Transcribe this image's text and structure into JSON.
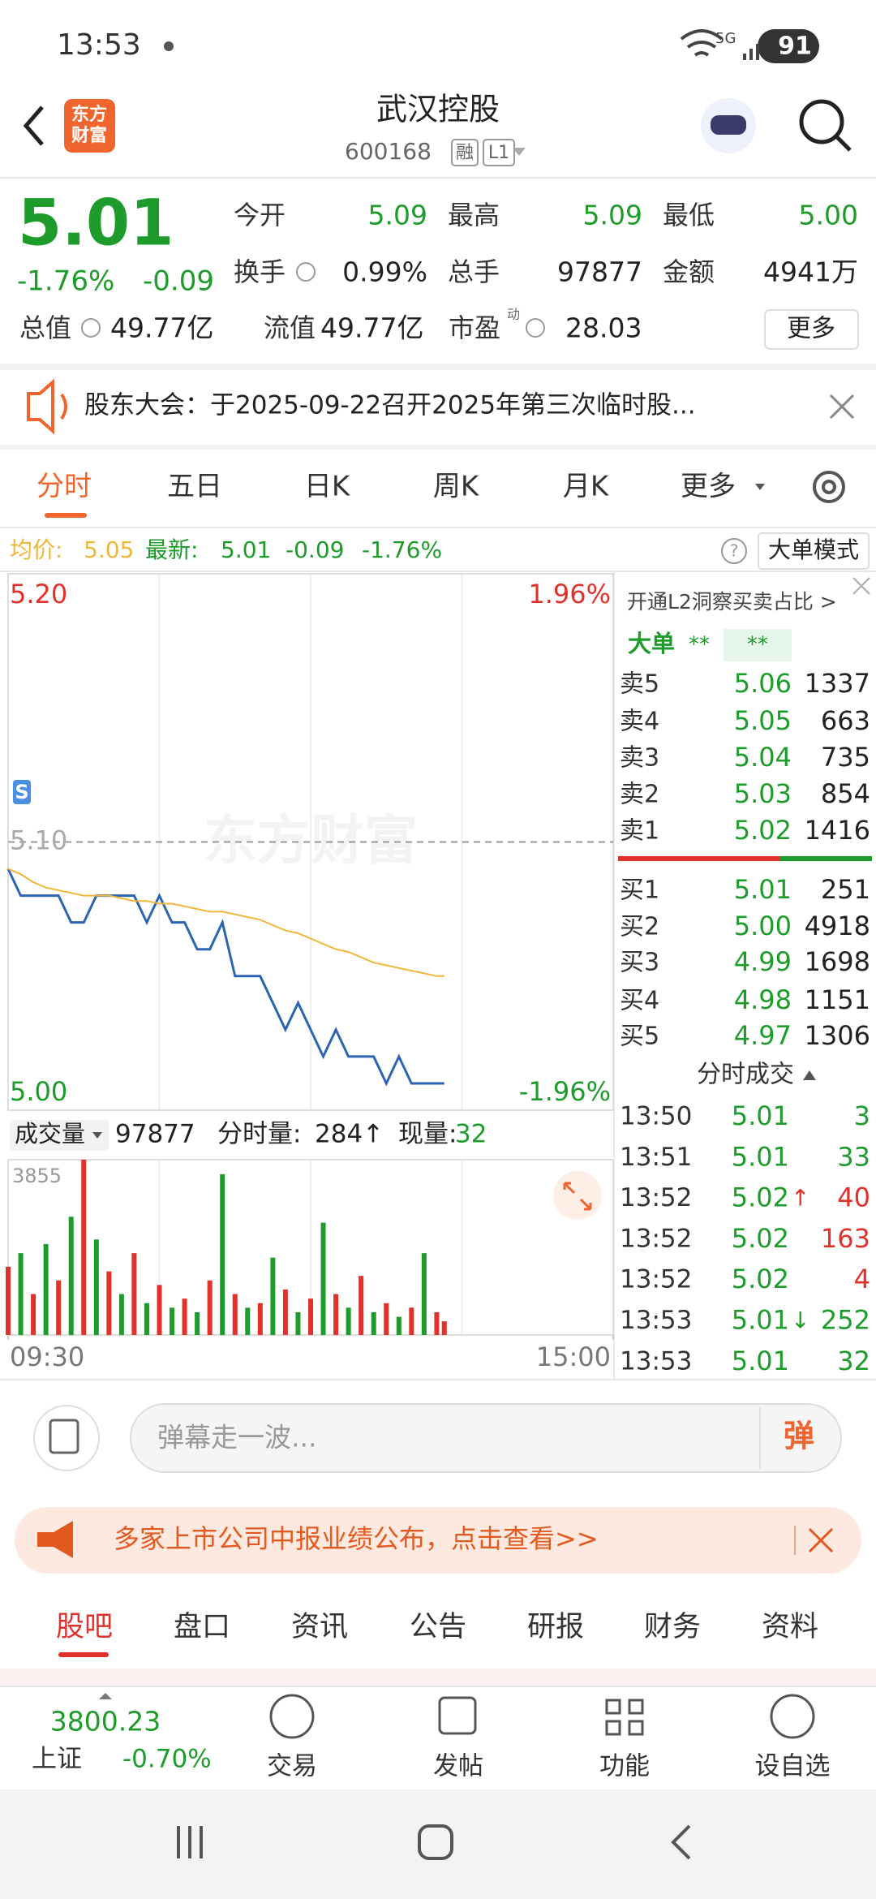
{
  "status_bar": {
    "time": "13:53",
    "network": "5G",
    "battery": "91"
  },
  "header": {
    "logo": [
      "东方",
      "财富"
    ],
    "title": "武汉控股",
    "code": "600168",
    "tags": [
      "融",
      "L1"
    ]
  },
  "quote": {
    "price": "5.01",
    "change_pct": "-1.76%",
    "change": "-0.09",
    "fields": [
      [
        "今开",
        "5.09"
      ],
      [
        "最高",
        "5.09"
      ],
      [
        "最低",
        "5.00"
      ],
      [
        "换手",
        "0.99%"
      ],
      [
        "总手",
        "97877"
      ],
      [
        "金额",
        "4941万"
      ],
      [
        "总值",
        "49.77亿"
      ],
      [
        "流值",
        "49.77亿"
      ],
      [
        "市盈",
        "28.03"
      ]
    ],
    "pe_tag": "动",
    "more": "更多"
  },
  "notice": "股东大会：于2025-09-22召开2025年第三次临时股...",
  "chart_tabs": [
    "分时",
    "五日",
    "日K",
    "周K",
    "月K",
    "更多"
  ],
  "info_bar": {
    "avg_label": "均价:",
    "avg": "5.05",
    "last_label": "最新:",
    "last": "5.01",
    "change": "-0.09",
    "change_pct": "-1.76%",
    "mode": "大单模式"
  },
  "watermark": "东方财富",
  "chart_data": [
    {
      "type": "line",
      "xlim": [
        0,
        240
      ],
      "ylim": [
        5.0,
        5.2
      ],
      "yticks": [
        {
          "value": 5.2,
          "label": "5.20"
        },
        {
          "value": 5.1,
          "label": "5.10"
        },
        {
          "value": 5.0,
          "label": "5.00"
        }
      ],
      "y2lim": [
        -1.96,
        1.96
      ],
      "y2ticks": [
        {
          "value": 1.96,
          "label": "1.96%"
        },
        {
          "value": -1.96,
          "label": "-1.96%"
        }
      ],
      "marker": "S",
      "x": [
        0,
        5,
        10,
        15,
        20,
        25,
        30,
        35,
        40,
        45,
        50,
        55,
        60,
        65,
        70,
        75,
        80,
        85,
        90,
        95,
        100,
        105,
        110,
        115,
        120,
        125,
        130,
        135,
        140,
        145,
        150,
        155,
        160,
        165,
        170,
        173
      ],
      "series": [
        {
          "color": "#2c64b3",
          "values": [
            5.09,
            5.08,
            5.08,
            5.08,
            5.08,
            5.07,
            5.07,
            5.08,
            5.08,
            5.08,
            5.08,
            5.07,
            5.08,
            5.07,
            5.07,
            5.06,
            5.06,
            5.07,
            5.05,
            5.05,
            5.05,
            5.04,
            5.03,
            5.04,
            5.03,
            5.02,
            5.03,
            5.02,
            5.02,
            5.02,
            5.01,
            5.02,
            5.01,
            5.01,
            5.01,
            5.01
          ]
        },
        {
          "color": "#f0b73a",
          "values": [
            5.09,
            5.088,
            5.085,
            5.083,
            5.082,
            5.081,
            5.08,
            5.08,
            5.08,
            5.079,
            5.078,
            5.078,
            5.077,
            5.077,
            5.076,
            5.075,
            5.074,
            5.074,
            5.073,
            5.072,
            5.071,
            5.069,
            5.067,
            5.066,
            5.064,
            5.062,
            5.06,
            5.059,
            5.057,
            5.055,
            5.054,
            5.053,
            5.052,
            5.051,
            5.05,
            5.05
          ]
        }
      ]
    },
    {
      "type": "bar",
      "label": "成交量",
      "total": "97877",
      "minute_label": "分时量:",
      "minute_value": "284↑",
      "current_label": "现量:",
      "current_value": "32",
      "xlim": [
        0,
        240
      ],
      "ylim": [
        0,
        3855
      ],
      "yticks": [
        3855
      ],
      "xticks": [
        {
          "value": 0,
          "label": "09:30"
        },
        {
          "value": 240,
          "label": "15:00"
        }
      ],
      "x": [
        0,
        5,
        10,
        15,
        20,
        25,
        30,
        35,
        40,
        45,
        50,
        55,
        60,
        65,
        70,
        75,
        80,
        85,
        90,
        95,
        100,
        105,
        110,
        115,
        120,
        125,
        130,
        135,
        140,
        145,
        150,
        155,
        160,
        165,
        170,
        173
      ],
      "series": [
        {
          "color": "#e0312b",
          "values": [
            1500,
            null,
            900,
            null,
            1200,
            null,
            3855,
            null,
            1400,
            null,
            1800,
            null,
            1100,
            null,
            800,
            null,
            1200,
            null,
            900,
            null,
            700,
            null,
            1000,
            null,
            800,
            null,
            900,
            null,
            1300,
            null,
            700,
            null,
            600,
            null,
            500,
            300
          ]
        },
        {
          "color": "#1d9b2b",
          "values": [
            null,
            1800,
            null,
            2000,
            null,
            2600,
            null,
            2100,
            null,
            900,
            null,
            700,
            null,
            600,
            null,
            500,
            null,
            3535,
            null,
            600,
            null,
            1700,
            null,
            500,
            null,
            2470,
            null,
            600,
            null,
            500,
            null,
            400,
            null,
            1800,
            null,
            null
          ]
        }
      ]
    }
  ],
  "order_book": {
    "promo": "开通L2洞察买卖占比 >",
    "big_label": "大单",
    "big_values": [
      "**",
      "**"
    ],
    "asks": [
      [
        "卖5",
        "5.06",
        "1337"
      ],
      [
        "卖4",
        "5.05",
        "663"
      ],
      [
        "卖3",
        "5.04",
        "735"
      ],
      [
        "卖2",
        "5.03",
        "854"
      ],
      [
        "卖1",
        "5.02",
        "1416"
      ]
    ],
    "bids": [
      [
        "买1",
        "5.01",
        "251"
      ],
      [
        "买2",
        "5.00",
        "4918"
      ],
      [
        "买3",
        "4.99",
        "1698"
      ],
      [
        "买4",
        "4.98",
        "1151"
      ],
      [
        "买5",
        "4.97",
        "1306"
      ]
    ]
  },
  "trades": {
    "title": "分时成交",
    "rows": [
      {
        "time": "13:50",
        "price": "5.01",
        "volume": "3",
        "color": "#1d9b2b"
      },
      {
        "time": "13:51",
        "price": "5.01",
        "volume": "33",
        "color": "#1d9b2b"
      },
      {
        "time": "13:52",
        "price": "5.02",
        "arrow": "↑",
        "volume": "40",
        "color": "#e0312b"
      },
      {
        "time": "13:52",
        "price": "5.02",
        "volume": "163",
        "color": "#e0312b"
      },
      {
        "time": "13:52",
        "price": "5.02",
        "volume": "4",
        "color": "#e0312b"
      },
      {
        "time": "13:53",
        "price": "5.01",
        "arrow": "↓",
        "volume": "252",
        "color": "#1d9b2b"
      },
      {
        "time": "13:53",
        "price": "5.01",
        "volume": "32",
        "color": "#1d9b2b"
      }
    ]
  },
  "comment": {
    "placeholder": "弹幕走一波...",
    "send": "弹"
  },
  "banner": "多家上市公司中报业绩公布，点击查看>>",
  "bottom_tabs": [
    "股吧",
    "盘口",
    "资讯",
    "公告",
    "研报",
    "财务",
    "资料"
  ],
  "footer": {
    "index_value": "3800.23",
    "index_name": "上证",
    "index_change": "-0.70%",
    "buttons": [
      "交易",
      "发帖",
      "功能",
      "设自选"
    ]
  }
}
